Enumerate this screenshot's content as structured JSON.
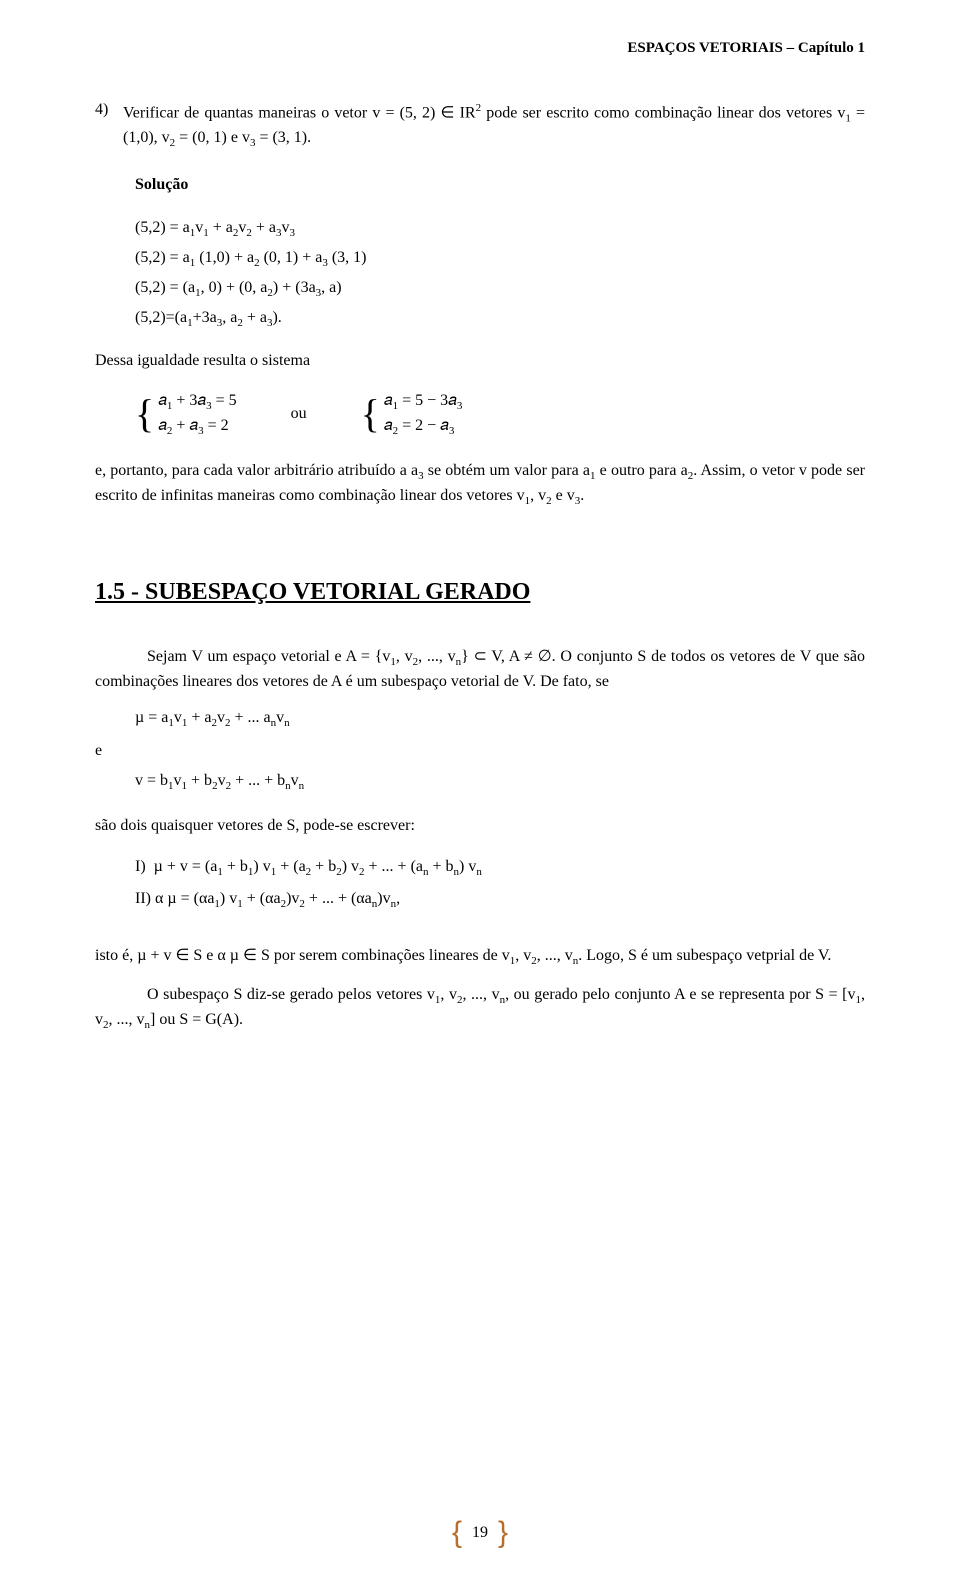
{
  "header": {
    "text": "ESPAÇOS VETORIAIS – Capítulo 1"
  },
  "item4": {
    "num": "4)",
    "text_html": "Verificar de quantas maneiras o vetor v = (5, 2) ∈ IR<span class='sup'>2</span> pode ser escrito como combinação linear dos vetores v<span class='sub'>1</span> = (1,0), v<span class='sub'>2</span> = (0, 1) e v<span class='sub'>3</span> = (3, 1)."
  },
  "solucao_label": "Solução",
  "solucao_lines": [
    "(5,2) = a<span class='sub'>1</span>v<span class='sub'>1</span> + a<span class='sub'>2</span>v<span class='sub'>2</span> + a<span class='sub'>3</span>v<span class='sub'>3</span>",
    "(5,2) = a<span class='sub'>1</span> (1,0) + a<span class='sub'>2</span> (0, 1) + a<span class='sub'>3</span> (3, 1)",
    "(5,2) = (a<span class='sub'>1</span>, 0) + (0, a<span class='sub'>2</span>) + (3a<span class='sub'>3</span>, a)",
    "(5,2)=(a<span class='sub'>1</span>+3a<span class='sub'>3</span>, a<span class='sub'>2</span> + a<span class='sub'>3</span>)."
  ],
  "dessa": "Dessa igualdade resulta o sistema",
  "sys1": {
    "row1": "𝑎<span class='sub'>1</span> + 3𝑎<span class='sub'>3</span> = 5",
    "row2": "𝑎<span class='sub'>2</span> + 𝑎<span class='sub'>3</span> =  2"
  },
  "ou": "ou",
  "sys2": {
    "row1": "𝑎<span class='sub'>1</span> = 5 − 3𝑎<span class='sub'>3</span>",
    "row2": "𝑎<span class='sub'>2</span> = 2 − 𝑎<span class='sub'>3</span>"
  },
  "concl_html": "e, portanto, para cada valor arbitrário atribuído a a<span class='sub'>3</span> se obtém um valor para a<span class='sub'>1</span> e outro para a<span class='sub'>2</span>. Assim, o vetor v pode ser escrito de infinitas maneiras como combinação linear dos vetores v<span class='sub'>1</span>, v<span class='sub'>2</span> e v<span class='sub'>3</span>.",
  "section_title": "1.5 - SUBESPAÇO VETORIAL GERADO",
  "sec_p1_html": "Sejam V um espaço vetorial e A = {v<span class='sub'>1</span>, v<span class='sub'>2</span>, ..., v<span class='sub'>n</span>} ⊂ V, A ≠ ∅. O conjunto S de todos os vetores de V que são combinações lineares dos vetores de A é um subespaço vetorial de V. De fato, se",
  "mu_line_html": "µ = a<span class='sub'>1</span>v<span class='sub'>1</span> + a<span class='sub'>2</span>v<span class='sub'>2</span> + ... a<span class='sub'>n</span>v<span class='sub'>n</span>",
  "e_label": "e",
  "v_line_html": "v = b<span class='sub'>1</span>v<span class='sub'>1</span> + b<span class='sub'>2</span>v<span class='sub'>2</span> + ... + b<span class='sub'>n</span>v<span class='sub'>n</span>",
  "sao_dois": "são dois quaisquer vetores de S, pode-se escrever:",
  "roman1_html": "I)&nbsp;&nbsp;µ + v = (a<span class='sub'>1</span> + b<span class='sub'>1</span>) v<span class='sub'>1</span> +  (a<span class='sub'>2</span> + b<span class='sub'>2</span>) v<span class='sub'>2</span> + ... + (a<span class='sub'>n</span> + b<span class='sub'>n</span>) v<span class='sub'>n</span>",
  "roman2_html": "II)&nbsp;α µ = (αa<span class='sub'>1</span>) v<span class='sub'>1</span> + (αa<span class='sub'>2</span>)v<span class='sub'>2</span> + ... + (αa<span class='sub'>n</span>)v<span class='sub'>n</span>,",
  "isto_html": "isto é,  µ + v ∈ S e α µ ∈ S por serem combinações lineares de v<span class='sub'>1</span>, v<span class='sub'>2</span>, ..., v<span class='sub'>n</span>. Logo, S é um subespaço vetprial de V.",
  "osub_html": "O subespaço S diz-se gerado pelos vetores v<span class='sub'>1</span>, v<span class='sub'>2</span>, ..., v<span class='sub'>n</span>, ou gerado pelo conjunto A e se representa por S = [v<span class='sub'>1</span>, v<span class='sub'>2</span>, ..., v<span class='sub'>n</span>] ou S = G(A).",
  "pagenum": "19"
}
